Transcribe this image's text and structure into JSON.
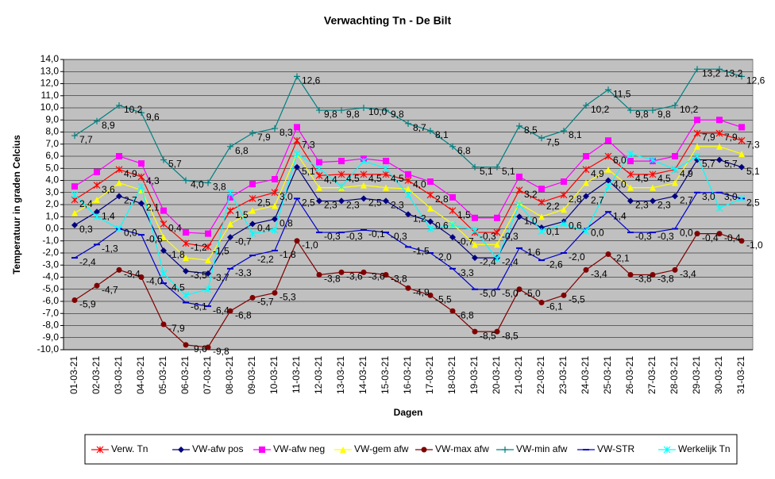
{
  "chart_data": {
    "type": "line",
    "title": "Verwachting Tn - De Bilt",
    "xlabel": "Dagen",
    "ylabel": "Temperatuur in graden Celcius",
    "categories": [
      "01-03-21",
      "02-03-21",
      "03-03-21",
      "04-03-21",
      "05-03-21",
      "06-03-21",
      "07-03-21",
      "08-03-21",
      "09-03-21",
      "10-03-21",
      "11-03-21",
      "12-03-21",
      "13-03-21",
      "14-03-21",
      "15-03-21",
      "16-03-21",
      "17-03-21",
      "18-03-21",
      "19-03-21",
      "20-03-21",
      "21-03-21",
      "22-03-21",
      "23-03-21",
      "24-03-21",
      "25-03-21",
      "26-03-21",
      "27-03-21",
      "28-03-21",
      "29-03-21",
      "30-03-21",
      "31-03-21"
    ],
    "ylim": [
      -10,
      14
    ],
    "yticks": [
      {
        "value": 14,
        "label": "14,0"
      },
      {
        "value": 13,
        "label": "13,0"
      },
      {
        "value": 12,
        "label": "12,0"
      },
      {
        "value": 11,
        "label": "11,0"
      },
      {
        "value": 10,
        "label": "10,0"
      },
      {
        "value": 9,
        "label": "9,0"
      },
      {
        "value": 8,
        "label": "8,0"
      },
      {
        "value": 7,
        "label": "7,0"
      },
      {
        "value": 6,
        "label": "6,0"
      },
      {
        "value": 5,
        "label": "5,0"
      },
      {
        "value": 4,
        "label": "4,0"
      },
      {
        "value": 3,
        "label": "3,0"
      },
      {
        "value": 2,
        "label": "2,0"
      },
      {
        "value": 1,
        "label": "1,0"
      },
      {
        "value": 0,
        "label": "0,0"
      },
      {
        "value": -1,
        "label": "-1,0"
      },
      {
        "value": -2,
        "label": "-2,0"
      },
      {
        "value": -3,
        "label": "-3,0"
      },
      {
        "value": -4,
        "label": "-4,0"
      },
      {
        "value": -5,
        "label": "-5,0"
      },
      {
        "value": -6,
        "label": "-6,0"
      },
      {
        "value": -7,
        "label": "-7,0"
      },
      {
        "value": -8,
        "label": "-8,0"
      },
      {
        "value": -9,
        "label": "-9,0"
      },
      {
        "value": -10,
        "label": "-10,0"
      }
    ],
    "grid": true,
    "legend": "bottom",
    "series": [
      {
        "name": "Verw. Tn",
        "color": "#ff0000",
        "marker": "x",
        "values": [
          2.4,
          3.6,
          4.9,
          4.3,
          0.4,
          -1.2,
          -1.5,
          1.5,
          2.5,
          3.0,
          7.3,
          4.4,
          4.5,
          4.5,
          4.5,
          4.0,
          2.8,
          1.5,
          -0.3,
          -0.3,
          3.2,
          2.2,
          2.8,
          4.9,
          6.0,
          4.5,
          4.5,
          4.9,
          7.9,
          7.9,
          7.3
        ],
        "value_labels": [
          "2,4",
          "3,6",
          "4,9",
          "4,3",
          "0,4",
          "-1,2",
          "-1,5",
          "1,5",
          "2,5",
          "3,0",
          "7,3",
          "4,4",
          "4,5",
          "4,5",
          "4,5",
          "4,0",
          "2,8",
          "1,5",
          "-0,3",
          "-0,3",
          "3,2",
          "2,2",
          "2,8",
          "4,9",
          "6,0",
          "4,5",
          "4,5",
          "4,9",
          "7,9",
          "7,9",
          "7,3"
        ]
      },
      {
        "name": "VW-afw pos",
        "color": "#000080",
        "marker": "diamond",
        "values": [
          0.3,
          1.4,
          2.7,
          2.1,
          -1.8,
          -3.5,
          -3.7,
          -0.7,
          0.4,
          0.8,
          5.1,
          2.3,
          2.3,
          2.5,
          2.3,
          1.2,
          0.6,
          -0.7,
          -2.4,
          -2.4,
          1.0,
          0.1,
          0.6,
          2.7,
          4.0,
          2.3,
          2.3,
          2.7,
          5.7,
          5.7,
          5.1
        ],
        "value_labels": [
          "0,3",
          "1,4",
          "2,7",
          "2,1",
          "-1,8",
          "-3,5",
          "-3,7",
          "-0,7",
          "0,4",
          "0,8",
          "5,1",
          "2,3",
          "2,3",
          "2,5",
          "2,3",
          "1,2",
          "0,6",
          "-0,7",
          "-2,4",
          "-2,4",
          "1,0",
          "0,1",
          "0,6",
          "2,7",
          "4,0",
          "2,3",
          "2,3",
          "2,7",
          "5,7",
          "5,7",
          "5,1"
        ]
      },
      {
        "name": "VW-afw neg",
        "color": "#ff00ff",
        "marker": "square",
        "values": [
          3.5,
          4.7,
          6.0,
          5.4,
          1.5,
          -0.3,
          -0.4,
          2.6,
          3.7,
          4.1,
          8.4,
          5.5,
          5.6,
          5.8,
          5.6,
          4.5,
          3.9,
          2.6,
          0.9,
          0.9,
          4.3,
          3.3,
          3.9,
          6.0,
          7.3,
          5.6,
          5.6,
          6.0,
          9.0,
          9.0,
          8.4
        ]
      },
      {
        "name": "VW-gem afw",
        "color": "#ffff00",
        "marker": "triangle",
        "values": [
          1.3,
          2.4,
          3.8,
          3.2,
          -0.7,
          -2.4,
          -2.6,
          0.4,
          1.5,
          1.9,
          6.2,
          3.4,
          3.4,
          3.6,
          3.4,
          3.3,
          1.7,
          0.4,
          -1.3,
          -1.3,
          2.1,
          1.0,
          1.6,
          3.8,
          4.9,
          3.4,
          3.4,
          3.8,
          6.8,
          6.8,
          6.2
        ]
      },
      {
        "name": "VW-max afw",
        "color": "#800000",
        "marker": "circle",
        "values": [
          -5.9,
          -4.7,
          -3.4,
          -4.0,
          -7.9,
          -9.6,
          -9.8,
          -6.8,
          -5.7,
          -5.3,
          -1.0,
          -3.8,
          -3.6,
          -3.6,
          -3.8,
          -4.9,
          -5.5,
          -6.8,
          -8.5,
          -8.5,
          -5.0,
          -6.1,
          -5.5,
          -3.4,
          -2.1,
          -3.8,
          -3.8,
          -3.4,
          -0.4,
          -0.4,
          -1.0
        ],
        "value_labels": [
          "-5,9",
          "-4,7",
          "-3,4",
          "-4,0",
          "-7,9",
          "-9,6",
          "-9,8",
          "-6,8",
          "-5,7",
          "-5,3",
          "-1,0",
          "-3,8",
          "-3,6",
          "-3,6",
          "-3,8",
          "-4,9",
          "-5,5",
          "-6,8",
          "-8,5",
          "-8,5",
          "-5,0",
          "-6,1",
          "-5,5",
          "-3,4",
          "-2,1",
          "-3,8",
          "-3,8",
          "-3,4",
          "-0,4",
          "-0,4",
          "-1,0"
        ]
      },
      {
        "name": "VW-min afw",
        "color": "#008080",
        "marker": "plus",
        "values": [
          7.7,
          8.9,
          10.2,
          9.6,
          5.7,
          4.0,
          3.8,
          6.8,
          7.9,
          8.3,
          12.6,
          9.8,
          9.8,
          10.0,
          9.8,
          8.7,
          8.1,
          6.8,
          5.1,
          5.1,
          8.5,
          7.5,
          8.1,
          10.2,
          11.5,
          9.8,
          9.8,
          10.2,
          13.2,
          13.2,
          12.6
        ],
        "value_labels": [
          "7,7",
          "8,9",
          "10,2",
          "9,6",
          "5,7",
          "4,0",
          "3,8",
          "6,8",
          "7,9",
          "8,3",
          "12,6",
          "9,8",
          "9,8",
          "10,0",
          "9,8",
          "8,7",
          "8,1",
          "6,8",
          "5,1",
          "5,1",
          "8,5",
          "7,5",
          "8,1",
          "10,2",
          "11,5",
          "9,8",
          "9,8",
          "10,2",
          "13,2",
          "13,2",
          "12,6"
        ]
      },
      {
        "name": "VW-STR",
        "color": "#0000cc",
        "marker": "dash",
        "values": [
          -2.4,
          -1.3,
          0.0,
          -0.5,
          -4.5,
          -6.1,
          -6.4,
          -3.3,
          -2.2,
          -1.8,
          2.5,
          -0.3,
          -0.3,
          -0.1,
          -0.3,
          -1.5,
          -2.0,
          -3.3,
          -5.0,
          -5.0,
          -1.6,
          -2.6,
          -2.0,
          0.0,
          1.4,
          -0.3,
          -0.3,
          0.0,
          3.0,
          3.0,
          2.5
        ],
        "value_labels": [
          "-2,4",
          "-1,3",
          "0,0",
          "-0,5",
          "-4,5",
          "-6,1",
          "-6,4",
          "-3,3",
          "-2,2",
          "-1,8",
          "2,5",
          "-0,3",
          "-0,3",
          "-0,1",
          "-0,3",
          "-1,5",
          "-2,0",
          "-3,3",
          "-5,0",
          "-5,0",
          "-1,6",
          "-2,6",
          "-2,0",
          "0,0",
          "1,4",
          "-0,3",
          "-0,3",
          "0,0",
          "3,0",
          "3,0",
          "2,5"
        ]
      },
      {
        "name": "Werkelijk Tn",
        "color": "#00ffff",
        "marker": "x",
        "values": [
          2.8,
          1.0,
          0.0,
          3.5,
          -3.7,
          -5.5,
          -5.0,
          3.0,
          -0.4,
          -0.1,
          6.2,
          5.0,
          3.5,
          5.6,
          5.0,
          2.8,
          0.0,
          0.3,
          -0.1,
          -2.5,
          2.0,
          -0.2,
          0.4,
          -0.2,
          3.5,
          6.2,
          5.7,
          4.9,
          6.0,
          1.7,
          2.5
        ]
      }
    ]
  }
}
